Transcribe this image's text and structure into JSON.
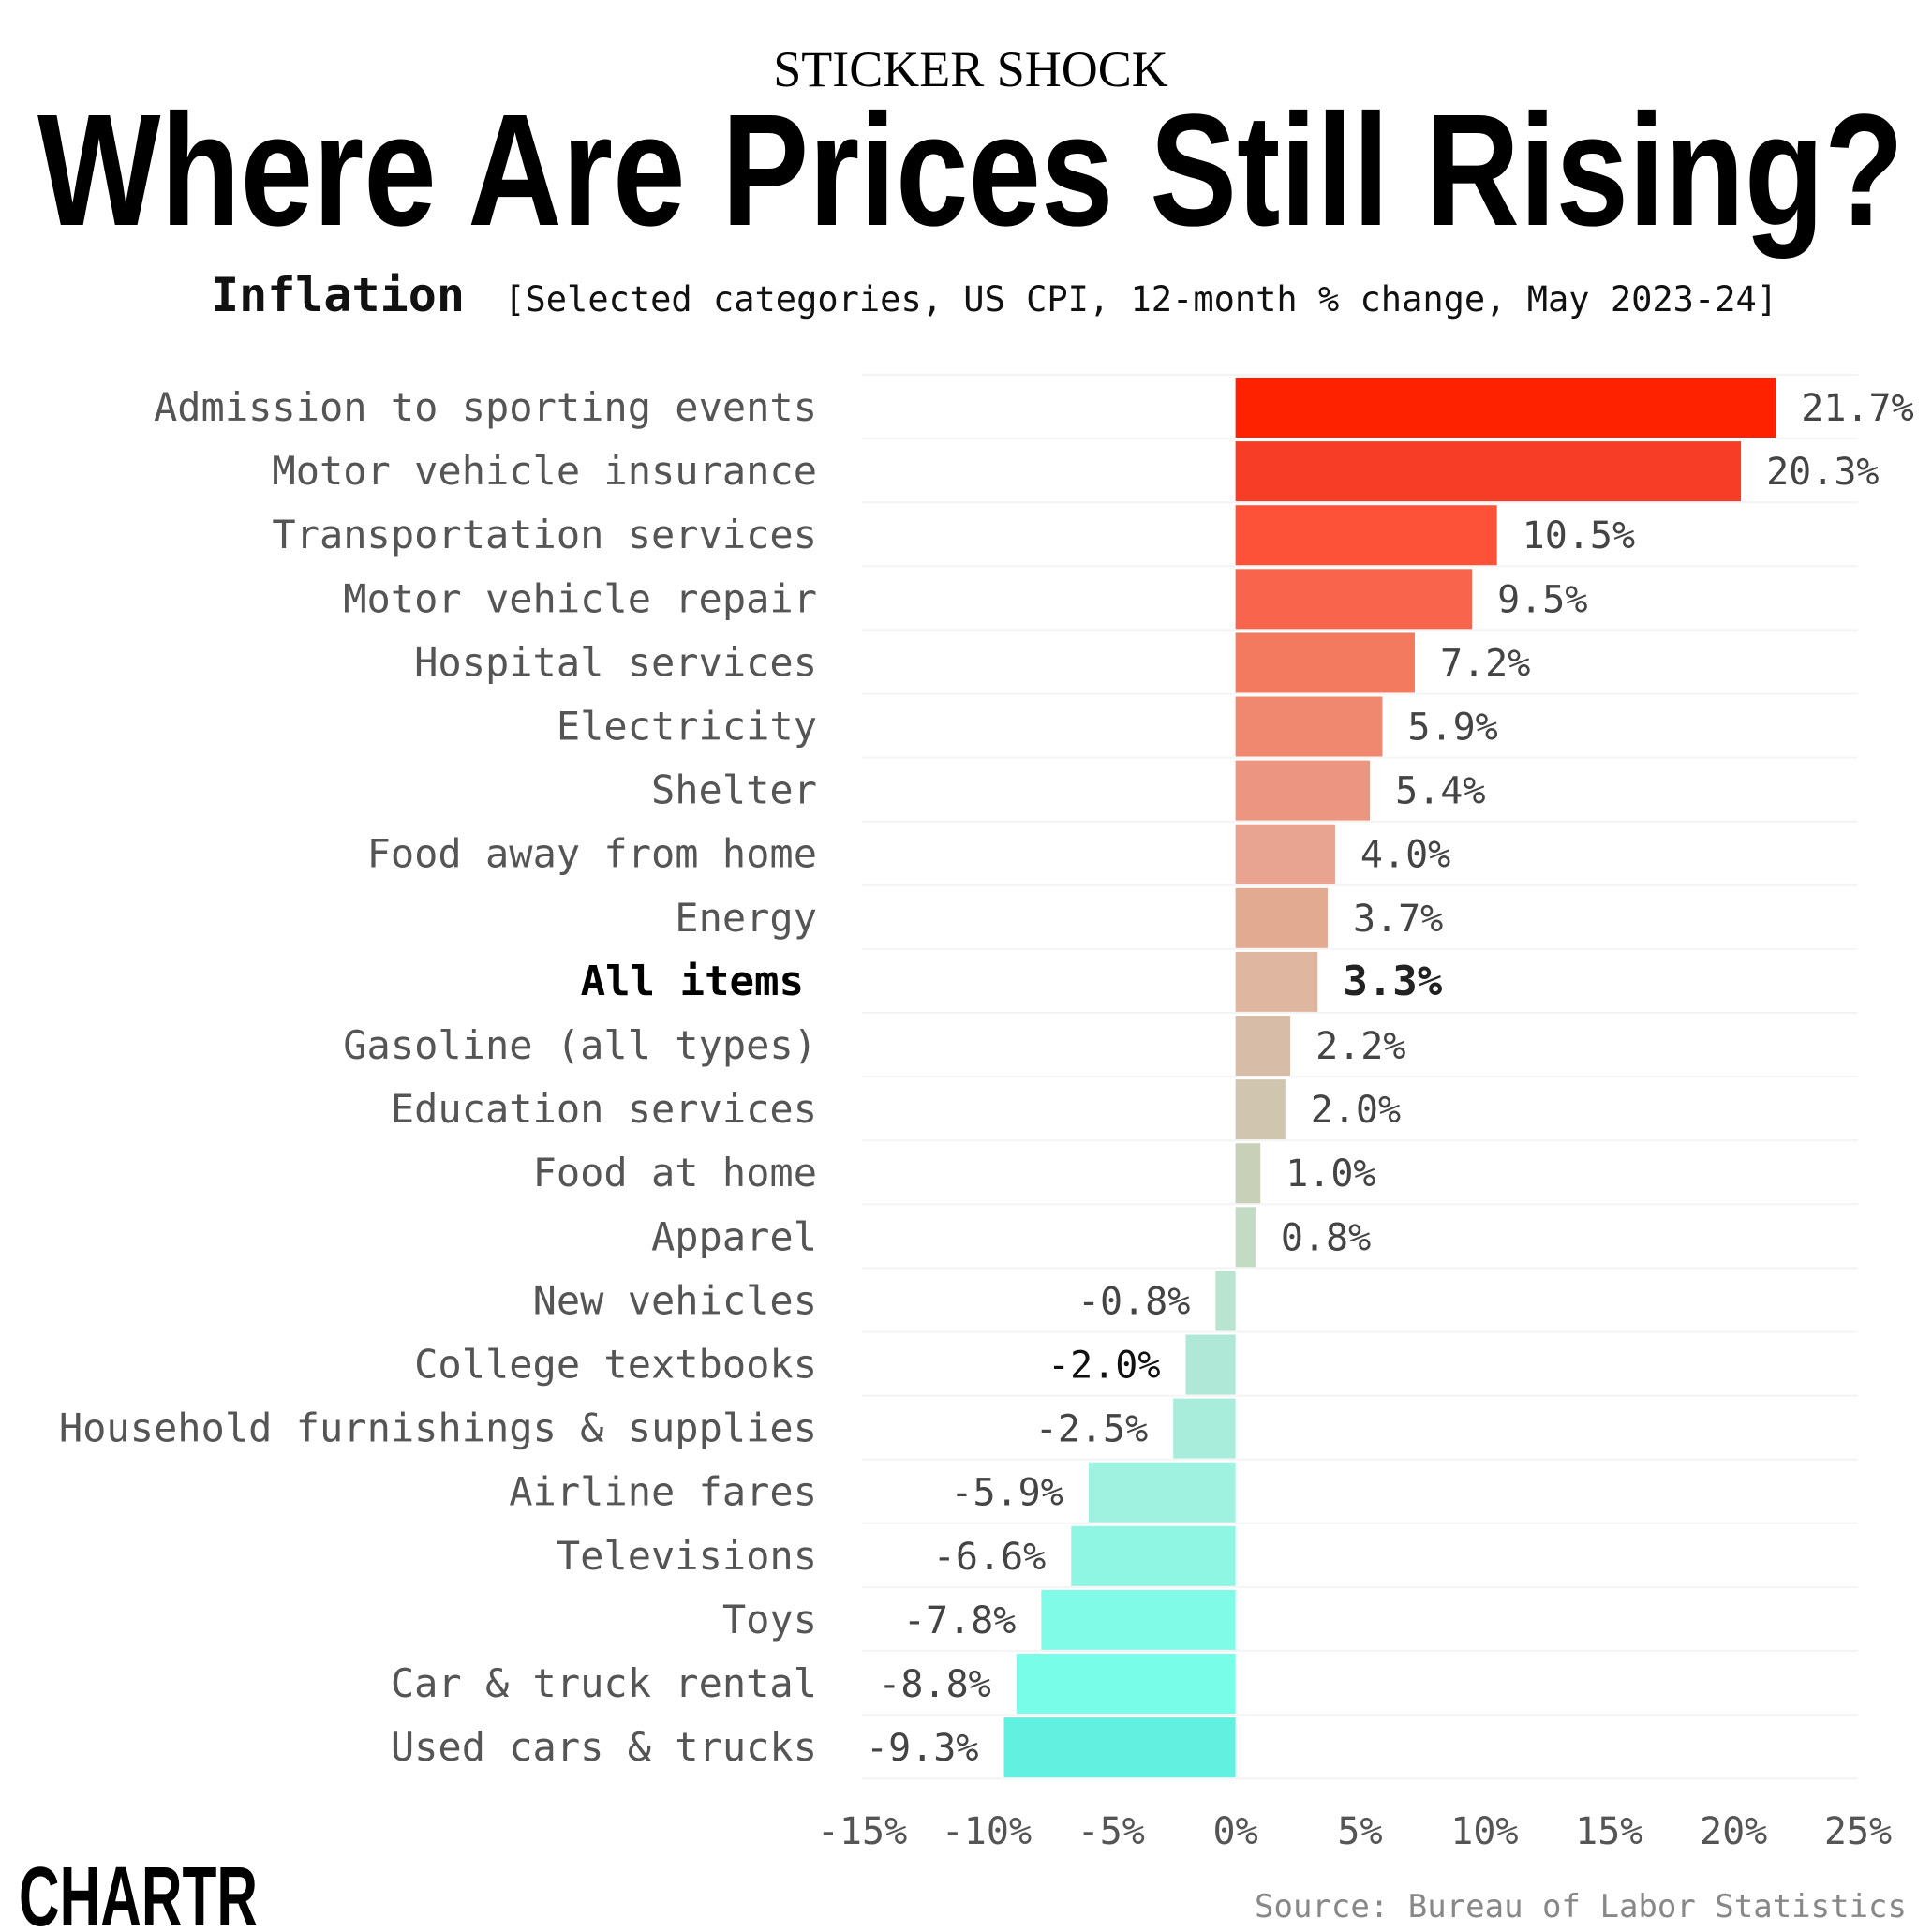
{
  "header": {
    "kicker": "STICKER SHOCK",
    "title": "Where Are Prices Still Rising?",
    "subtitle_bold": "Inflation",
    "subtitle_rest": "[Selected categories, US CPI, 12-month % change, May 2023-24]"
  },
  "footer": {
    "logo": "CHARTR",
    "source": "Source: Bureau of Labor Statistics"
  },
  "chart_data": {
    "type": "bar",
    "orientation": "horizontal",
    "categories": [
      "Admission to sporting events",
      "Motor vehicle insurance",
      "Transportation services",
      "Motor vehicle repair",
      "Hospital services",
      "Electricity",
      "Shelter",
      "Food away from home",
      "Energy",
      "All items",
      "Gasoline (all types)",
      "Education services",
      "Food at home",
      "Apparel",
      "New vehicles",
      "College textbooks",
      "Household furnishings & supplies",
      "Airline fares",
      "Televisions",
      "Toys",
      "Car & truck rental",
      "Used cars & trucks"
    ],
    "values": [
      21.7,
      20.3,
      10.5,
      9.5,
      7.2,
      5.9,
      5.4,
      4.0,
      3.7,
      3.3,
      2.2,
      2.0,
      1.0,
      0.8,
      -0.8,
      -2.0,
      -2.5,
      -5.9,
      -6.6,
      -7.8,
      -8.8,
      -9.3
    ],
    "data_labels": [
      "21.7%",
      "20.3%",
      "10.5%",
      "9.5%",
      "7.2%",
      "5.9%",
      "5.4%",
      "4.0%",
      "3.7%",
      "3.3%",
      "2.2%",
      "2.0%",
      "1.0%",
      "0.8%",
      "-0.8%",
      "-2.0%",
      "-2.5%",
      "-5.9%",
      "-6.6%",
      "-7.8%",
      "-8.8%",
      "-9.3%"
    ],
    "highlight": "All items",
    "colors": [
      "#ff2200",
      "#f73d25",
      "#fd5138",
      "#f8654c",
      "#f47a5f",
      "#f08870",
      "#ec9580",
      "#e8a490",
      "#e3aa92",
      "#dfb6a0",
      "#d7bca8",
      "#d0c6b0",
      "#c8d0b8",
      "#c2dcc4",
      "#b8e4d0",
      "#b0e8d8",
      "#a8ecdc",
      "#a0f2e0",
      "#90f6e4",
      "#80fbe8",
      "#78fee8",
      "#62f0e0"
    ],
    "xlim": [
      -15,
      25
    ],
    "xticks": [
      "-15%",
      "-10%",
      "-5%",
      "0%",
      "5%",
      "10%",
      "15%",
      "20%",
      "25%"
    ],
    "xtick_values": [
      -15,
      -10,
      -5,
      0,
      5,
      10,
      15,
      20,
      25
    ],
    "grid": true
  }
}
